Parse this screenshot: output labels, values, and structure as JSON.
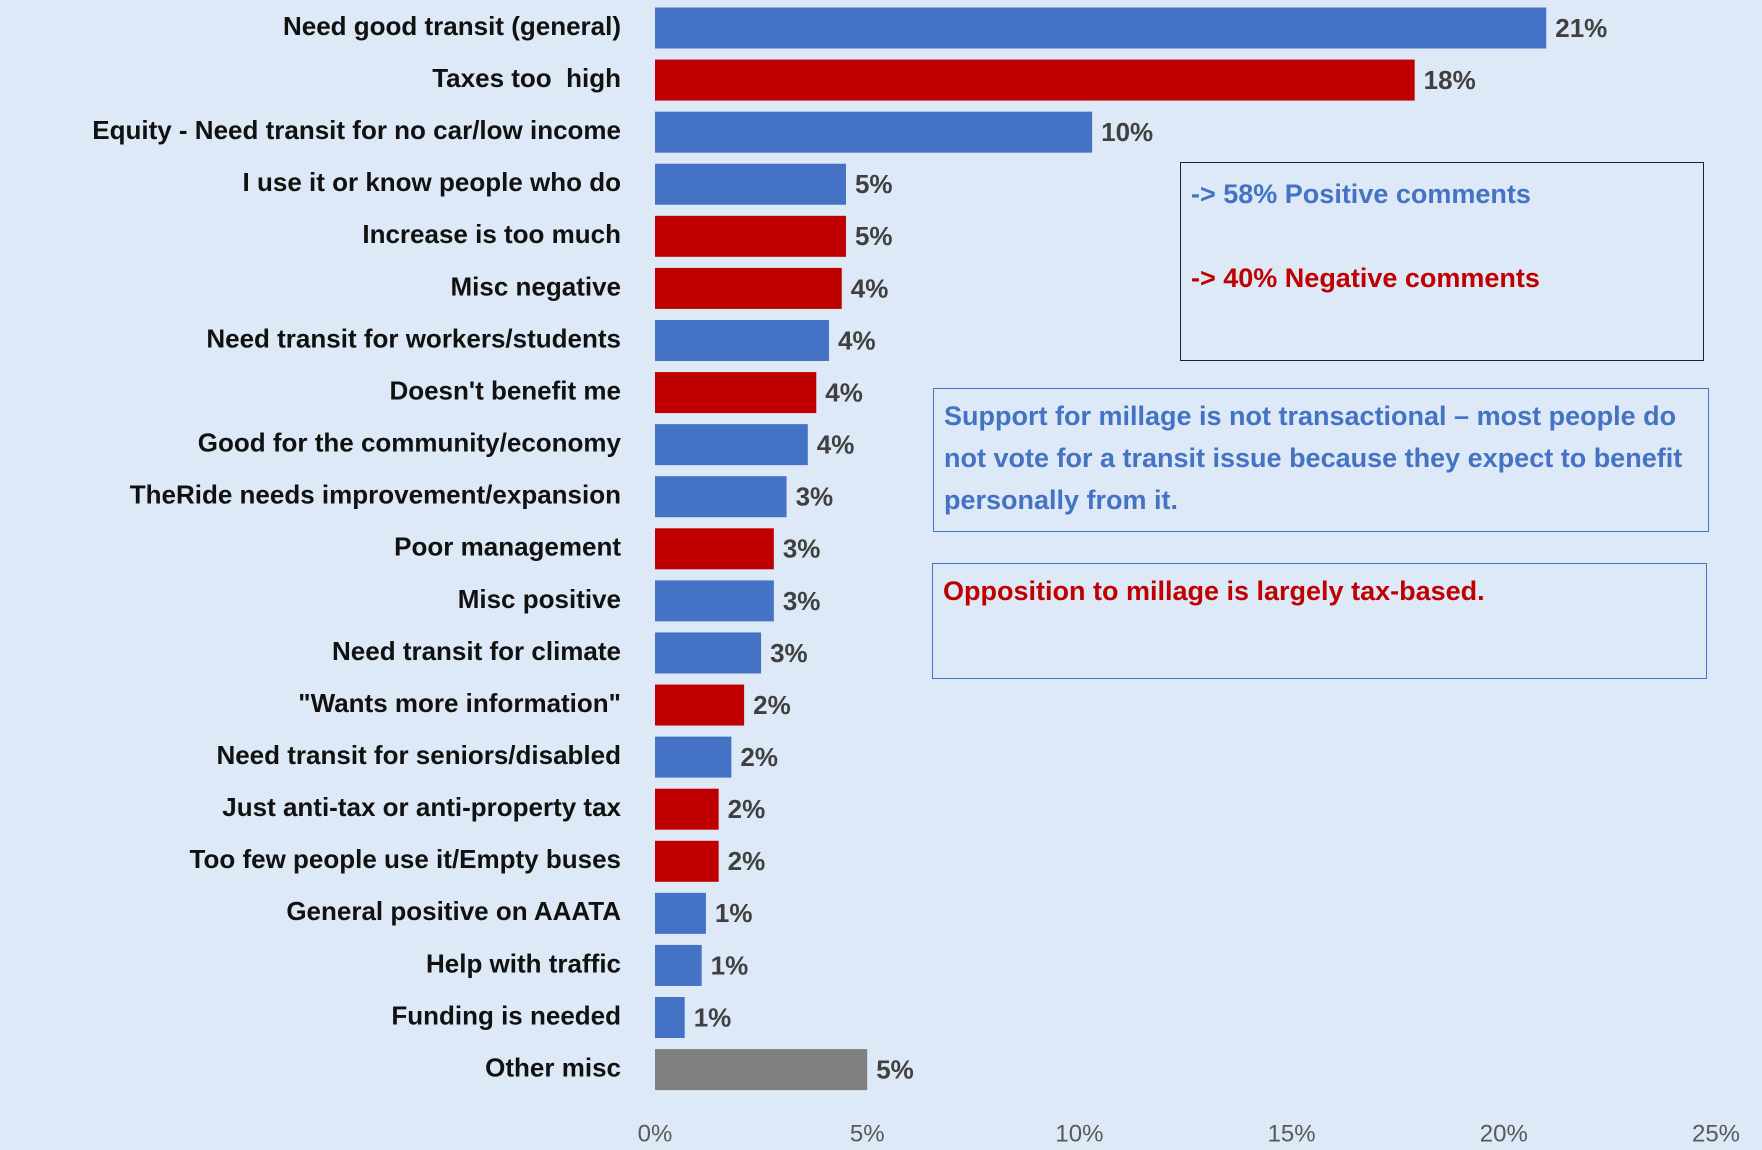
{
  "chart_data": {
    "type": "bar",
    "orientation": "horizontal",
    "categories": [
      "Need good transit (general)",
      "Taxes too  high",
      "Equity - Need transit for no car/low income",
      "I use it or know people who do",
      "Increase is too much",
      "Misc negative",
      "Need transit for workers/students",
      "Doesn't benefit me",
      "Good for the community/economy",
      "TheRide needs improvement/expansion",
      "Poor management",
      "Misc positive",
      "Need transit for climate",
      "\"Wants more information\"",
      "Need transit for seniors/disabled",
      "Just anti-tax or anti-property tax",
      "Too few people use it/Empty buses",
      "General positive on AAATA",
      "Help with traffic",
      "Funding is needed",
      "Other misc"
    ],
    "values": [
      21.0,
      17.9,
      10.3,
      4.5,
      4.5,
      4.4,
      4.1,
      3.8,
      3.6,
      3.1,
      2.8,
      2.8,
      2.5,
      2.1,
      1.8,
      1.5,
      1.5,
      1.2,
      1.1,
      0.7,
      5.0
    ],
    "value_labels": [
      "21%",
      "18%",
      "10%",
      "5%",
      "5%",
      "4%",
      "4%",
      "4%",
      "4%",
      "3%",
      "3%",
      "3%",
      "3%",
      "2%",
      "2%",
      "2%",
      "2%",
      "1%",
      "1%",
      "1%",
      "5%"
    ],
    "colors": [
      "#4472c4",
      "#c00000",
      "#4472c4",
      "#4472c4",
      "#c00000",
      "#c00000",
      "#4472c4",
      "#c00000",
      "#4472c4",
      "#4472c4",
      "#c00000",
      "#4472c4",
      "#4472c4",
      "#c00000",
      "#4472c4",
      "#c00000",
      "#c00000",
      "#4472c4",
      "#4472c4",
      "#4472c4",
      "#808080"
    ],
    "xlim": [
      0,
      25
    ],
    "xticks": [
      {
        "value": 0,
        "label": "0%"
      },
      {
        "value": 5,
        "label": "5%"
      },
      {
        "value": 10,
        "label": "10%"
      },
      {
        "value": 15,
        "label": "15%"
      },
      {
        "value": 20,
        "label": "20%"
      },
      {
        "value": 25,
        "label": "25%"
      }
    ],
    "grid": false,
    "annotations": [
      "-> 58% Positive comments",
      "-> 40% Negative comments",
      "Support for millage is not transactional – most people do not vote for a transit issue because they expect to benefit personally from it.",
      "Opposition to millage is largely tax-based."
    ]
  }
}
